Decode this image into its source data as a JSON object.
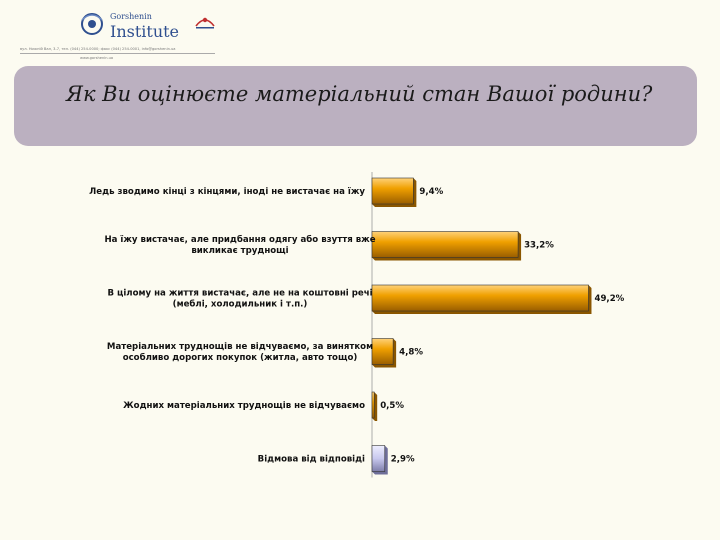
{
  "header": {
    "logo_small": "Gorshenin",
    "logo_big": "Institute",
    "address": "вул. Нижній Вал, 3-7, тел. (044) 254-0000; факс (044) 254-0001, info@gorshenin.ua",
    "web": "www.gorshenin.ua"
  },
  "colors": {
    "bar_main": "#f0a000",
    "bar_main_dark": "#8a5600",
    "bar_refuse": "#c8c8ee",
    "bar_refuse_dark": "#6e6e99",
    "banner": "#bbb0c0"
  },
  "chart_data": {
    "type": "bar",
    "orientation": "horizontal",
    "title": "Як Ви оцінюєте матеріальний стан Вашої родини?",
    "xlabel": "",
    "ylabel": "",
    "unit": "%",
    "xlim": [
      0,
      50
    ],
    "categories": [
      [
        "Ледь зводимо кінці з кінцями, іноді не вистачає на їжу"
      ],
      [
        "На їжу вистачає, але придбання одягу або взуття вже",
        "викликає труднощі"
      ],
      [
        "В цілому на життя вистачає, але не на коштовні речі",
        "(меблі, холодильник і т.п.)"
      ],
      [
        "Матеріальних труднощів не відчуваємо, за винятком",
        "особливо дорогих покупок (житла, авто тощо)"
      ],
      [
        "Жодних матеріальних труднощів не відчуваємо"
      ],
      [
        "Відмова від відповіді"
      ]
    ],
    "values": [
      9.4,
      33.2,
      49.2,
      4.8,
      0.5,
      2.9
    ],
    "value_labels": [
      "9,4%",
      "33,2%",
      "49,2%",
      "4,8%",
      "0,5%",
      "2,9%"
    ],
    "highlight": [
      false,
      false,
      false,
      false,
      false,
      true
    ],
    "grid": false,
    "legend": "none"
  }
}
